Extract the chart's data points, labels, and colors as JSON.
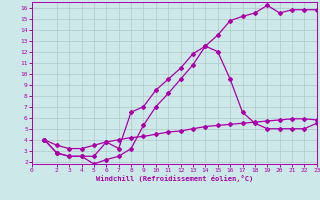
{
  "title": "",
  "xlabel": "Windchill (Refroidissement éolien,°C)",
  "ylabel": "",
  "bg_color": "#cce8e8",
  "line_color": "#aa00aa",
  "grid_color": "#b0c8c8",
  "xlim": [
    0,
    23
  ],
  "ylim": [
    2,
    16
  ],
  "xticks": [
    0,
    2,
    3,
    4,
    5,
    6,
    7,
    8,
    9,
    10,
    11,
    12,
    13,
    14,
    15,
    16,
    17,
    18,
    19,
    20,
    21,
    22,
    23
  ],
  "yticks": [
    2,
    3,
    4,
    5,
    6,
    7,
    8,
    9,
    10,
    11,
    12,
    13,
    14,
    15,
    16
  ],
  "line1_x": [
    1,
    2,
    3,
    4,
    5,
    6,
    7,
    8,
    9,
    10,
    11,
    12,
    13,
    14,
    15,
    16,
    17,
    18,
    19,
    20,
    21,
    22,
    23
  ],
  "line1_y": [
    4.0,
    2.8,
    2.5,
    2.5,
    1.8,
    2.2,
    2.5,
    3.2,
    5.3,
    7.0,
    8.2,
    9.5,
    10.8,
    12.5,
    13.5,
    14.8,
    15.2,
    15.5,
    16.2,
    15.5,
    15.8,
    15.8,
    15.8
  ],
  "line2_x": [
    1,
    2,
    3,
    4,
    5,
    6,
    7,
    8,
    9,
    10,
    11,
    12,
    13,
    14,
    15,
    16,
    17,
    18,
    19,
    20,
    21,
    22,
    23
  ],
  "line2_y": [
    4.0,
    2.8,
    2.5,
    2.5,
    2.5,
    3.8,
    3.2,
    6.5,
    7.0,
    8.5,
    9.5,
    10.5,
    11.8,
    12.5,
    12.0,
    9.5,
    6.5,
    5.5,
    5.0,
    5.0,
    5.0,
    5.0,
    5.5
  ],
  "line3_x": [
    1,
    2,
    3,
    4,
    5,
    6,
    7,
    8,
    9,
    10,
    11,
    12,
    13,
    14,
    15,
    16,
    17,
    18,
    19,
    20,
    21,
    22,
    23
  ],
  "line3_y": [
    4.0,
    3.5,
    3.2,
    3.2,
    3.5,
    3.8,
    4.0,
    4.2,
    4.3,
    4.5,
    4.7,
    4.8,
    5.0,
    5.2,
    5.3,
    5.4,
    5.5,
    5.6,
    5.7,
    5.8,
    5.9,
    5.9,
    5.8
  ],
  "marker": "D",
  "markersize": 2,
  "linewidth": 0.9
}
